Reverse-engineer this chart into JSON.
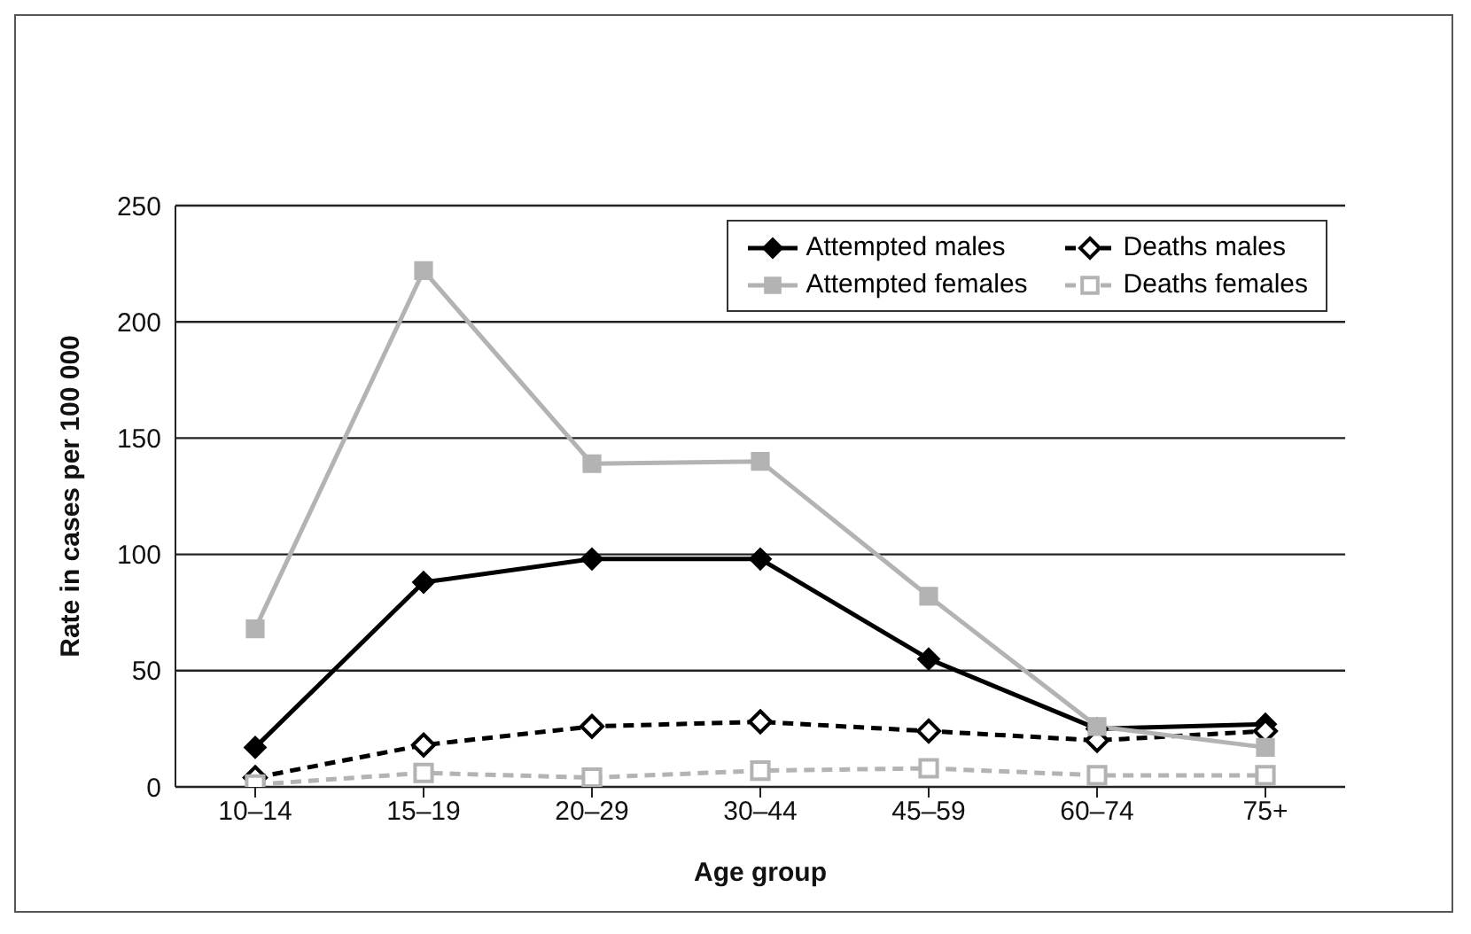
{
  "chart_data": {
    "type": "line",
    "xlabel": "Age group",
    "ylabel": "Rate in cases per 100 000",
    "categories": [
      "10–14",
      "15–19",
      "20–29",
      "30–44",
      "45–59",
      "60–74",
      "75+"
    ],
    "series": [
      {
        "name": "Attempted males",
        "color": "#000000",
        "marker": "diamond",
        "line_style": "solid",
        "values": [
          17,
          88,
          98,
          98,
          55,
          25,
          27
        ]
      },
      {
        "name": "Deaths males",
        "color": "#000000",
        "marker": "diamond",
        "line_style": "dashed",
        "values": [
          4,
          18,
          26,
          28,
          24,
          20,
          24
        ]
      },
      {
        "name": "Attempted females",
        "color": "#b3b3b3",
        "marker": "square",
        "line_style": "solid",
        "values": [
          68,
          222,
          139,
          140,
          82,
          26,
          17
        ]
      },
      {
        "name": "Deaths females",
        "color": "#b3b3b3",
        "marker": "square",
        "line_style": "dashed",
        "values": [
          1,
          6,
          4,
          7,
          8,
          5,
          5
        ]
      }
    ],
    "ylim": [
      0,
      250
    ],
    "yticks": [
      0,
      50,
      100,
      150,
      200,
      250
    ],
    "grid": "y",
    "legend": "top right"
  }
}
